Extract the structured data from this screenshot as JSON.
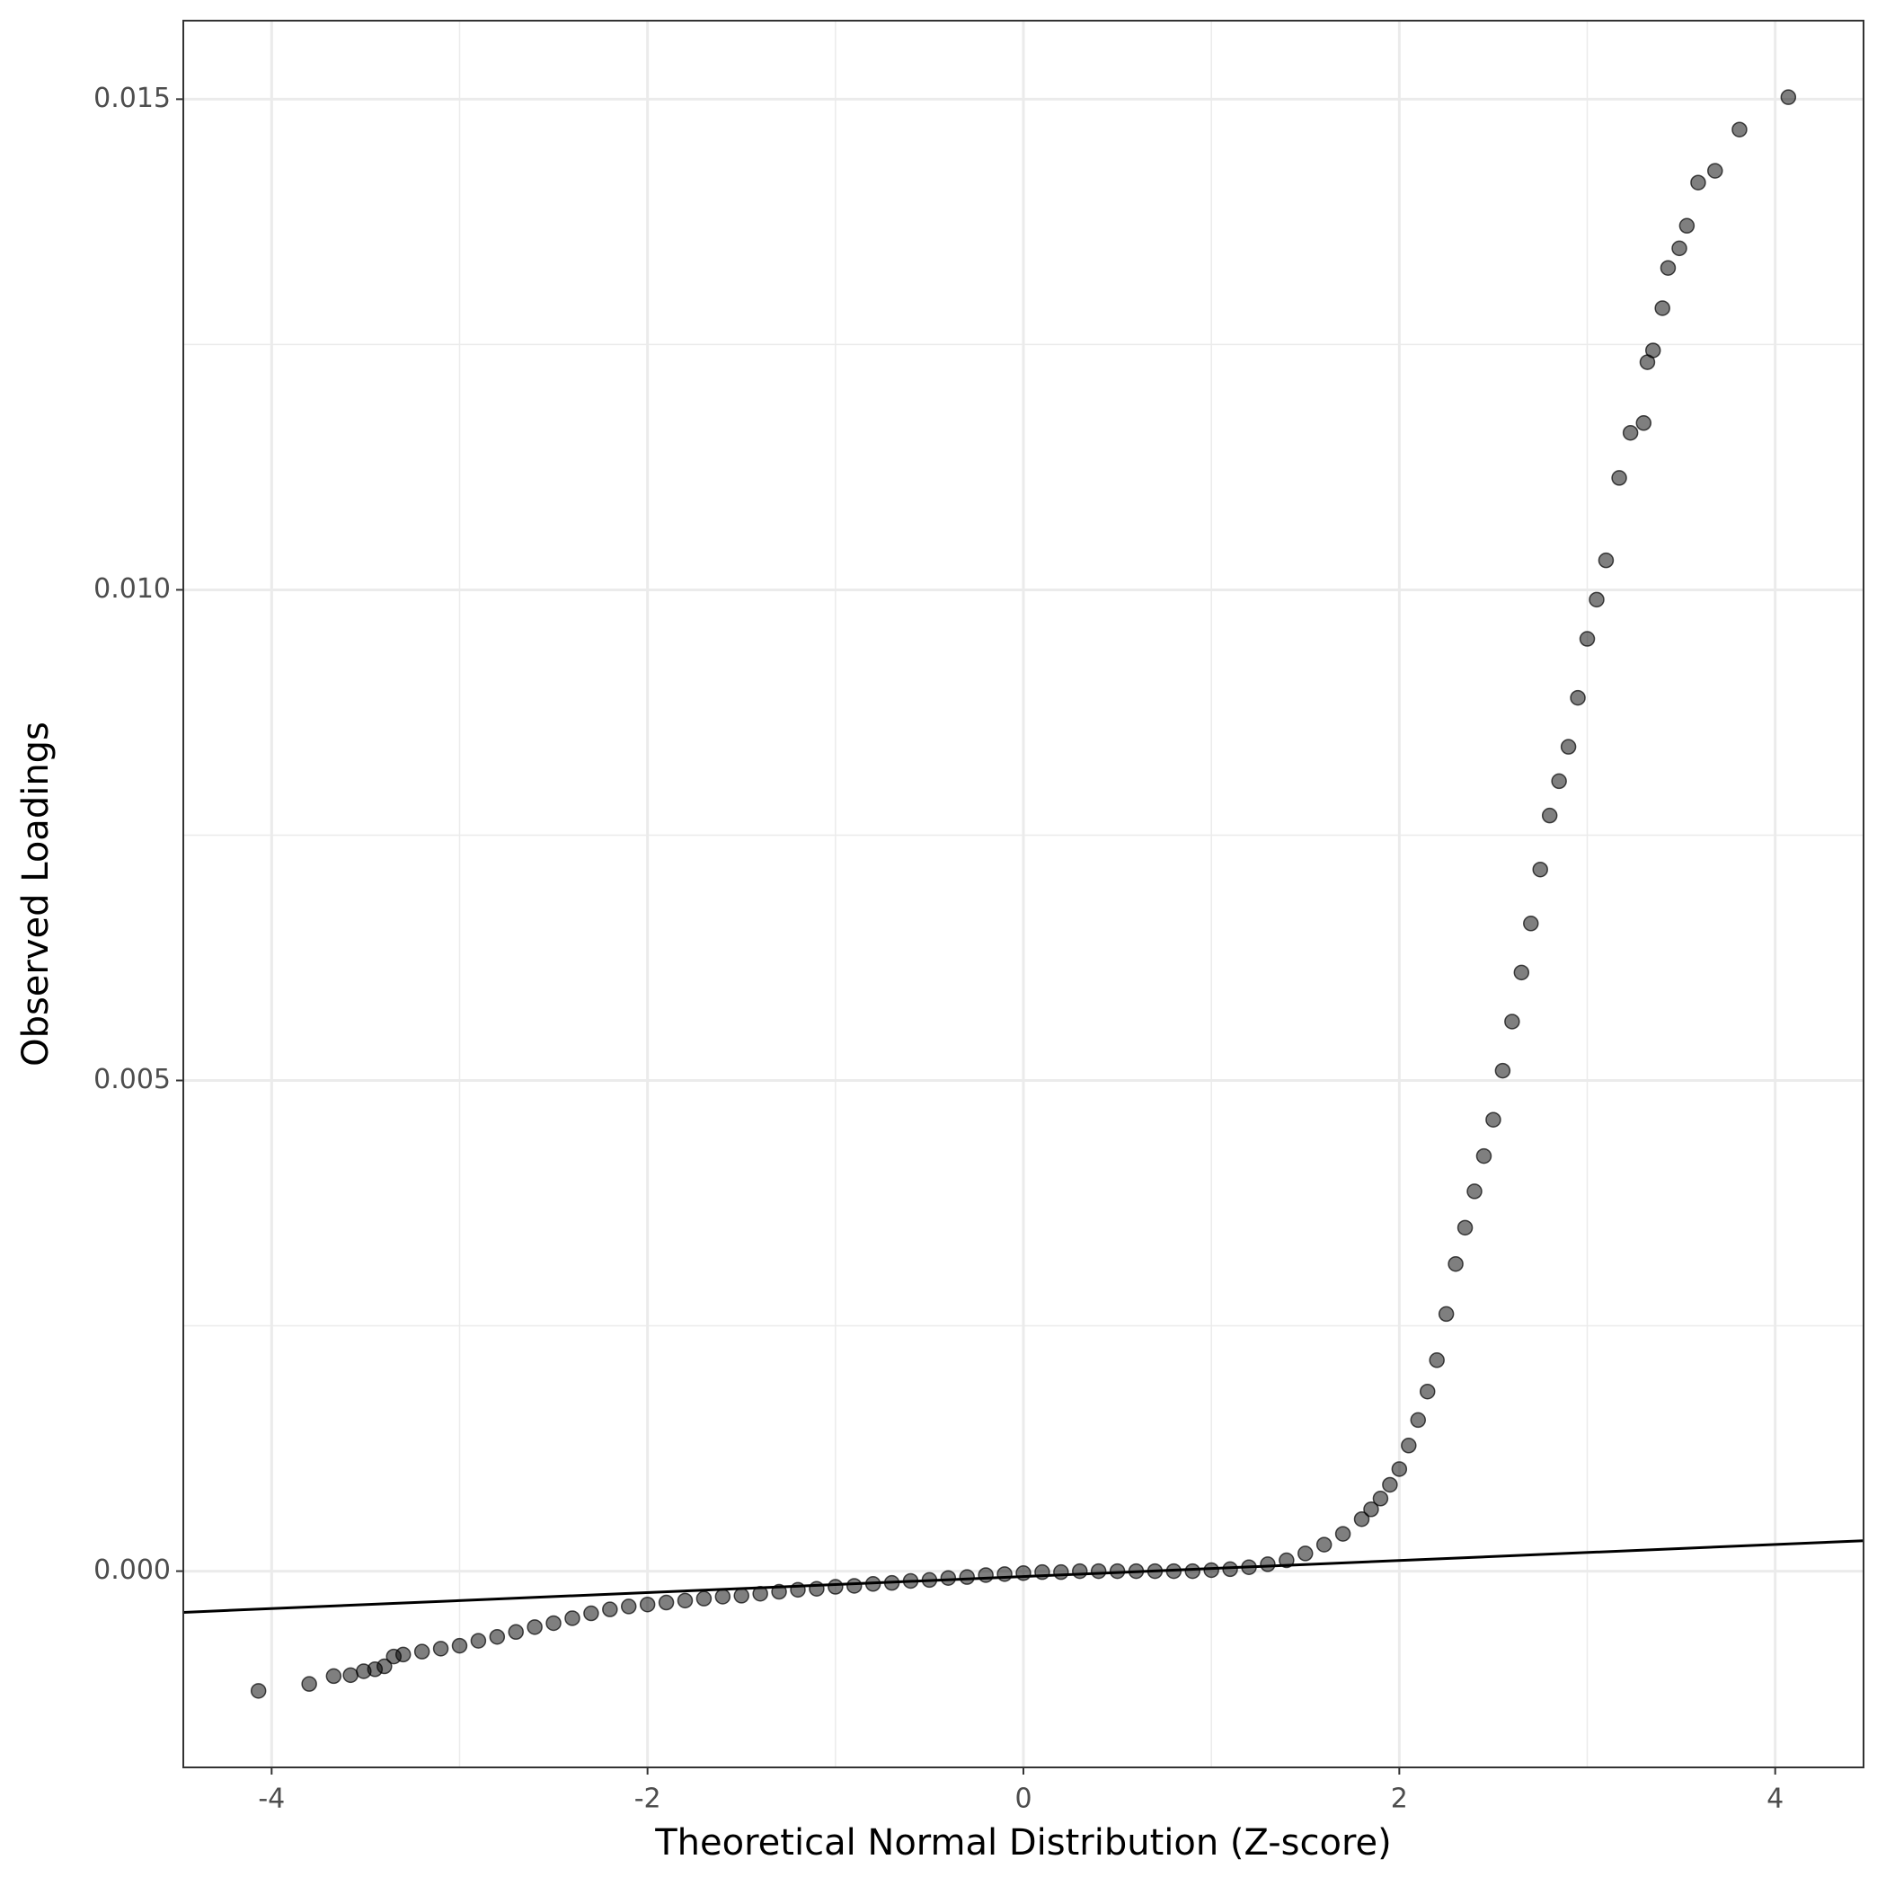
{
  "chart_data": {
    "type": "scatter",
    "x_label": "Theoretical Normal Distribution (Z-score)",
    "y_label": "Observed Loadings",
    "xlim": [
      -4.47,
      4.47
    ],
    "ylim": [
      -0.002,
      0.0158
    ],
    "xticks": [
      -4,
      -2,
      0,
      2,
      4
    ],
    "yticks": [
      {
        "value": 0,
        "label": "0.000"
      },
      {
        "value": 0.005,
        "label": "0.005"
      },
      {
        "value": 0.01,
        "label": "0.010"
      },
      {
        "value": 0.015,
        "label": "0.015"
      }
    ],
    "minor_xticks": [
      -3,
      -1,
      1,
      3
    ],
    "minor_yticks": [
      0.0025,
      0.0075,
      0.0125
    ],
    "grid": true,
    "color": "#000000",
    "reference_line": {
      "x": [
        -4.47,
        4.47
      ],
      "y": [
        -0.00042,
        0.00031
      ],
      "color": "#000000"
    },
    "x": [
      -4.07,
      -3.8,
      -3.67,
      -3.58,
      -3.51,
      -3.45,
      -3.4,
      -3.35,
      -3.3,
      -3.2,
      -3.1,
      -3.0,
      -2.9,
      -2.8,
      -2.7,
      -2.6,
      -2.5,
      -2.4,
      -2.3,
      -2.2,
      -2.1,
      -2.0,
      -1.9,
      -1.8,
      -1.7,
      -1.6,
      -1.5,
      -1.4,
      -1.3,
      -1.2,
      -1.1,
      -1.0,
      -0.9,
      -0.8,
      -0.7,
      -0.6,
      -0.5,
      -0.4,
      -0.3,
      -0.2,
      -0.1,
      0,
      0.1,
      0.2,
      0.3,
      0.4,
      0.5,
      0.6,
      0.7,
      0.8,
      0.9,
      1.0,
      1.1,
      1.2,
      1.3,
      1.4,
      1.5,
      1.6,
      1.7,
      1.8,
      1.85,
      1.9,
      1.95,
      2.0,
      2.05,
      2.1,
      2.15,
      2.2,
      2.25,
      2.3,
      2.35,
      2.4,
      2.45,
      2.5,
      2.55,
      2.6,
      2.65,
      2.7,
      2.75,
      2.8,
      2.85,
      2.9,
      2.95,
      3.0,
      3.05,
      3.1,
      3.17,
      3.23,
      3.3,
      3.32,
      3.35,
      3.4,
      3.43,
      3.49,
      3.53,
      3.59,
      3.68,
      3.81,
      4.07
    ],
    "values": [
      -0.00122,
      -0.00115,
      -0.00107,
      -0.00106,
      -0.00102,
      -0.001,
      -0.00097,
      -0.00087,
      -0.00085,
      -0.00082,
      -0.00079,
      -0.00076,
      -0.00071,
      -0.00067,
      -0.00062,
      -0.00057,
      -0.00053,
      -0.00048,
      -0.00043,
      -0.00039,
      -0.00036,
      -0.00034,
      -0.00032,
      -0.0003,
      -0.00028,
      -0.00026,
      -0.00025,
      -0.00023,
      -0.00021,
      -0.00019,
      -0.00018,
      -0.00016,
      -0.00015,
      -0.00013,
      -0.00012,
      -0.0001,
      -9e-05,
      -7e-05,
      -6e-05,
      -4e-05,
      -3e-05,
      -2e-05,
      -1e-05,
      -1e-05,
      0,
      0,
      0,
      0,
      0,
      0,
      0,
      1e-05,
      2e-05,
      4e-05,
      7e-05,
      0.00011,
      0.00018,
      0.00027,
      0.00038,
      0.00053,
      0.00063,
      0.00074,
      0.00088,
      0.00104,
      0.00128,
      0.00154,
      0.00183,
      0.00215,
      0.00262,
      0.00313,
      0.0035,
      0.00387,
      0.00423,
      0.0046,
      0.0051,
      0.0056,
      0.0061,
      0.0066,
      0.00715,
      0.0077,
      0.00805,
      0.0084,
      0.0089,
      0.0095,
      0.0099,
      0.0103,
      0.01114,
      0.0116,
      0.0117,
      0.01232,
      0.01244,
      0.01287,
      0.01328,
      0.01348,
      0.01371,
      0.01415,
      0.01427,
      0.01469,
      0.01502
    ]
  }
}
